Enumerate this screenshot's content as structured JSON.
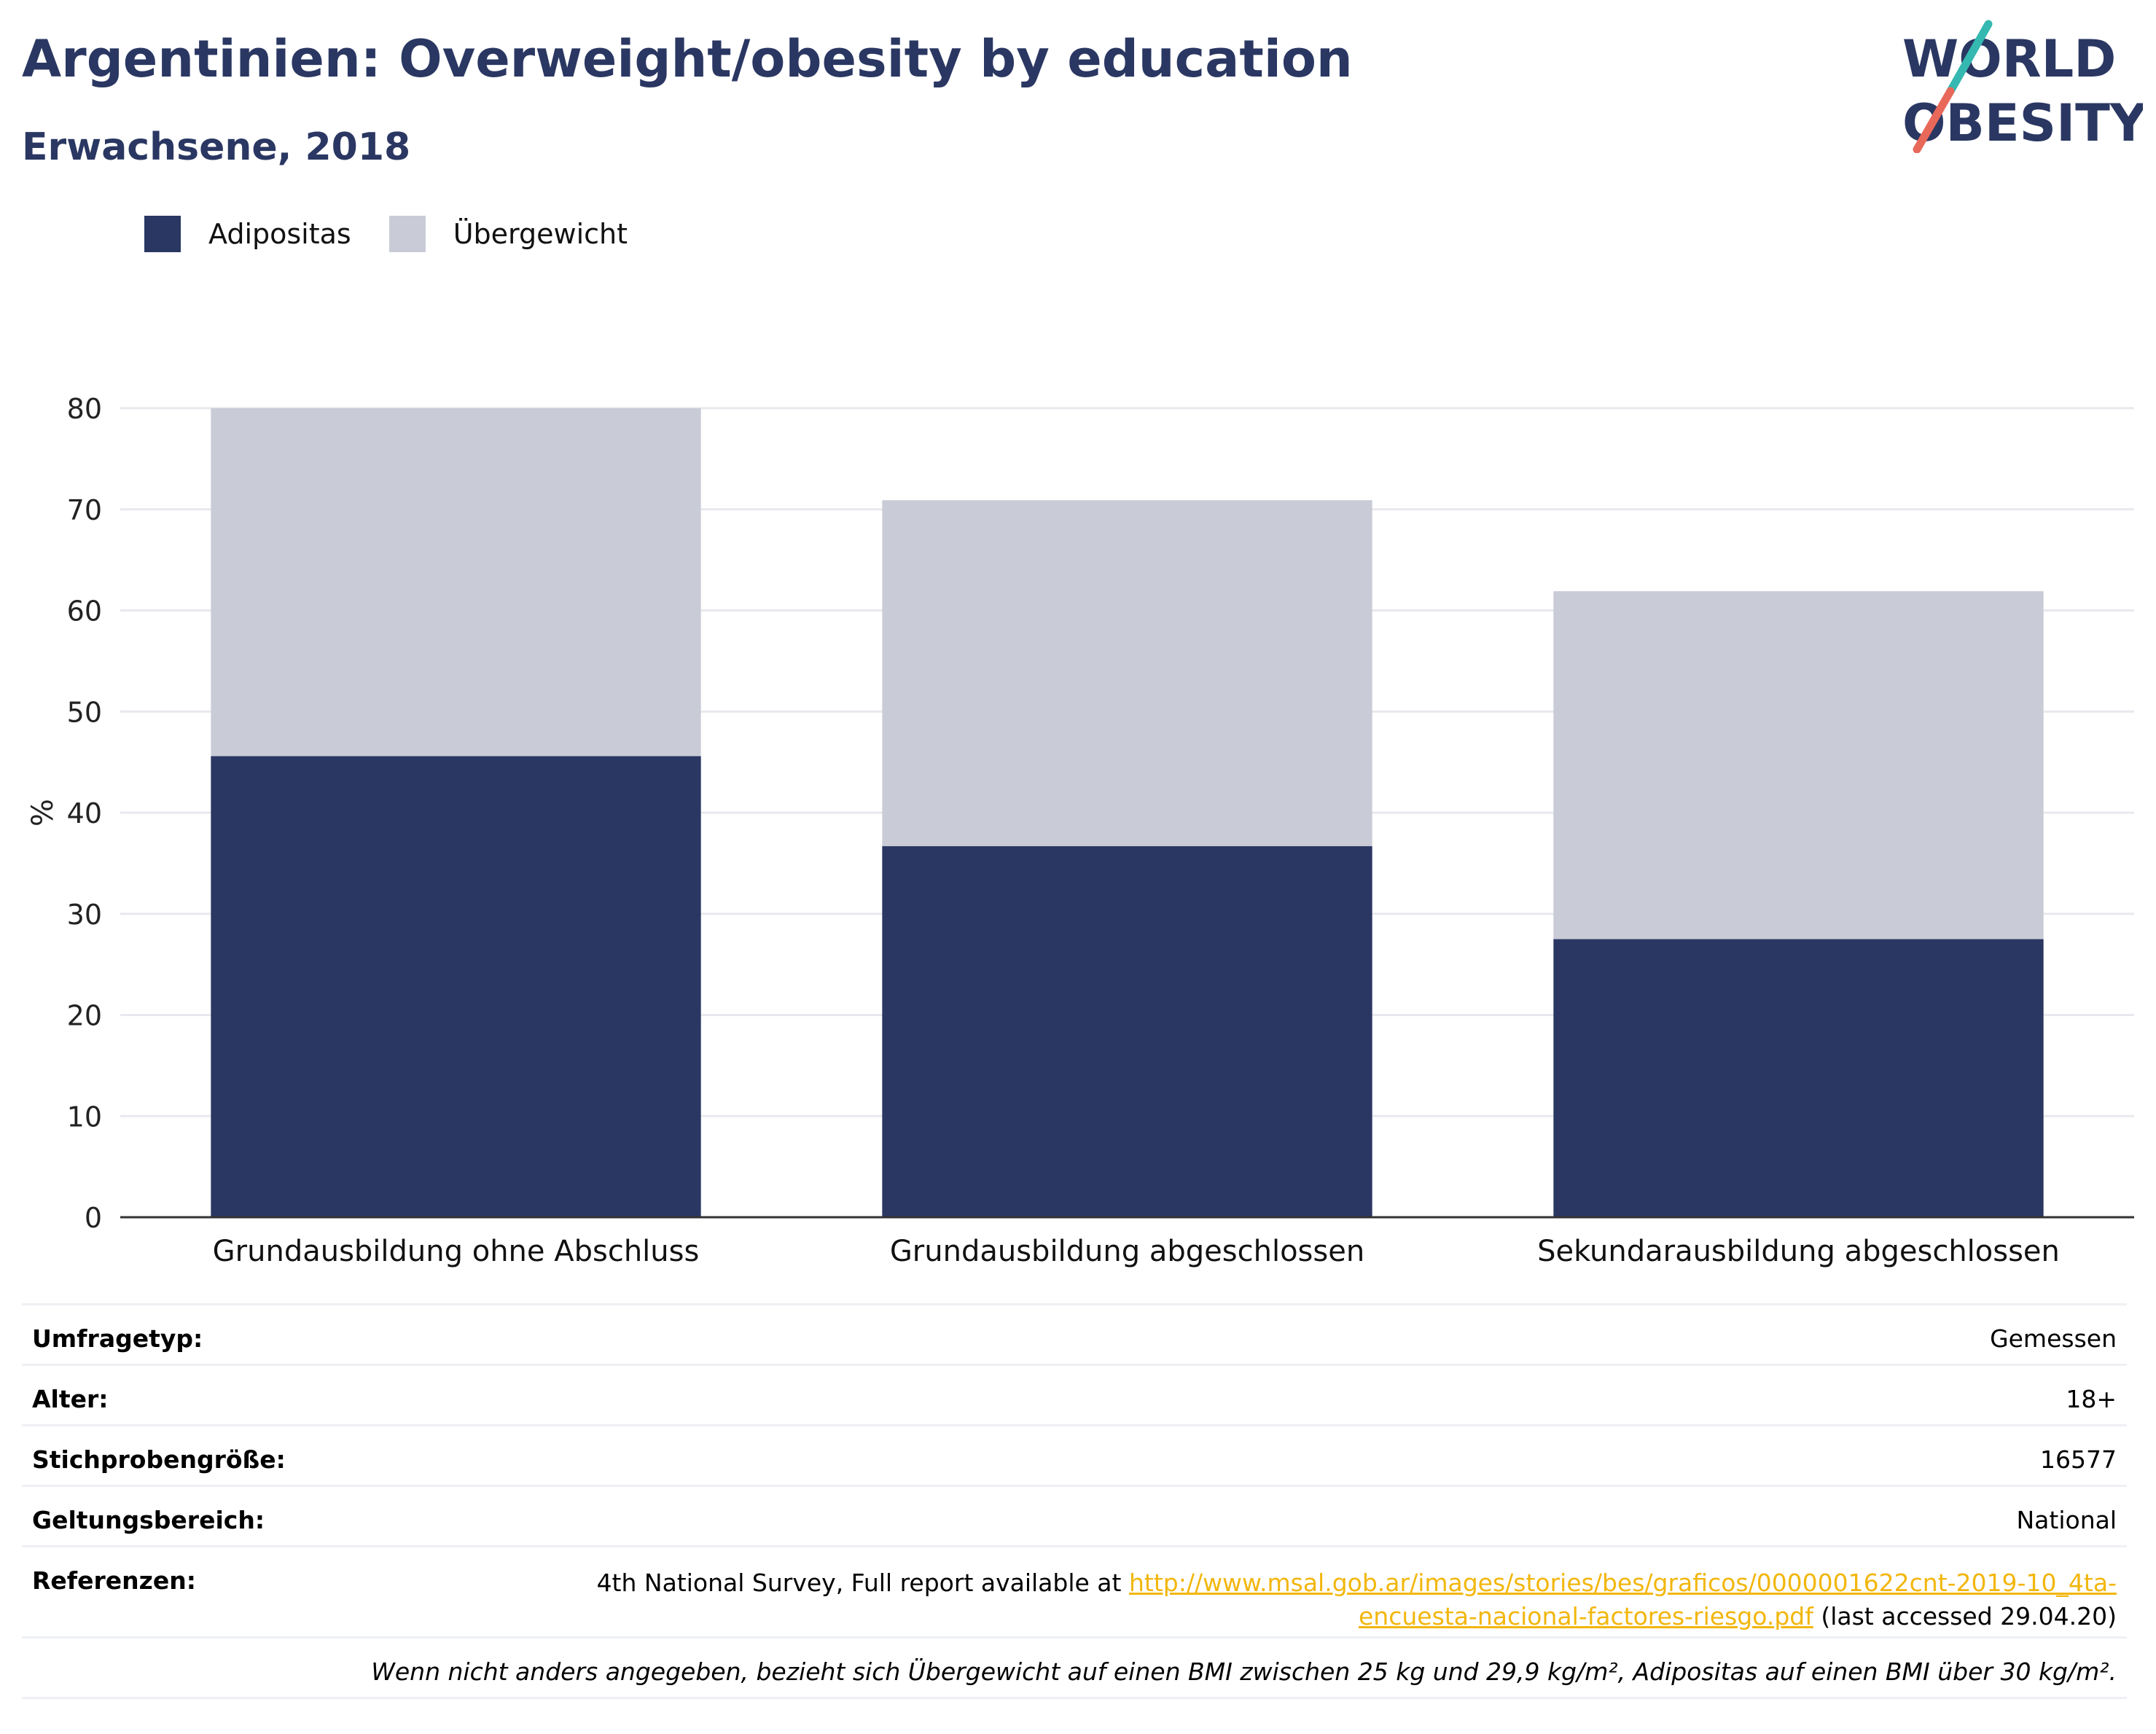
{
  "title": "Argentinien: Overweight/obesity by education",
  "subtitle": "Erwachsene, 2018",
  "logo": {
    "line1": "WORLD",
    "line2": "OBESITY"
  },
  "legend": [
    {
      "label": "Adipositas",
      "color": "#2a3762"
    },
    {
      "label": "Übergewicht",
      "color": "#c9ccd7"
    }
  ],
  "chart_data": {
    "type": "bar",
    "stacked": true,
    "categories": [
      "Grundausbildung ohne Abschluss",
      "Grundausbildung abgeschlossen",
      "Sekundarausbildung abgeschlossen"
    ],
    "series": [
      {
        "name": "Adipositas",
        "values": [
          45.6,
          36.7,
          27.5
        ],
        "color": "#2a3762"
      },
      {
        "name": "Übergewicht",
        "values": [
          34.4,
          34.2,
          34.4
        ],
        "color": "#c9ccd7"
      }
    ],
    "ylabel": "%",
    "ylim": [
      0,
      80
    ],
    "yticks": [
      0,
      10,
      20,
      30,
      40,
      50,
      60,
      70,
      80
    ],
    "grid": true
  },
  "meta": [
    {
      "key": "Umfragetyp:",
      "value": "Gemessen"
    },
    {
      "key": "Alter:",
      "value": "18+"
    },
    {
      "key": "Stichprobengröße:",
      "value": "16577"
    },
    {
      "key": "Geltungsbereich:",
      "value": "National"
    }
  ],
  "references": {
    "key": "Referenzen:",
    "prefix": "4th National Survey, Full report available at ",
    "link_line1": "http://www.msal.gob.ar/images/stories/bes/graficos/0000001622cnt-2019-10_4ta-",
    "link_line2": "encuesta-nacional-factores-riesgo.pdf",
    "suffix": " (last accessed 29.04.20)"
  },
  "note": "Wenn nicht anders angegeben, bezieht sich Übergewicht auf einen BMI zwischen 25 kg und 29,9 kg/m², Adipositas auf einen BMI über 30 kg/m²."
}
